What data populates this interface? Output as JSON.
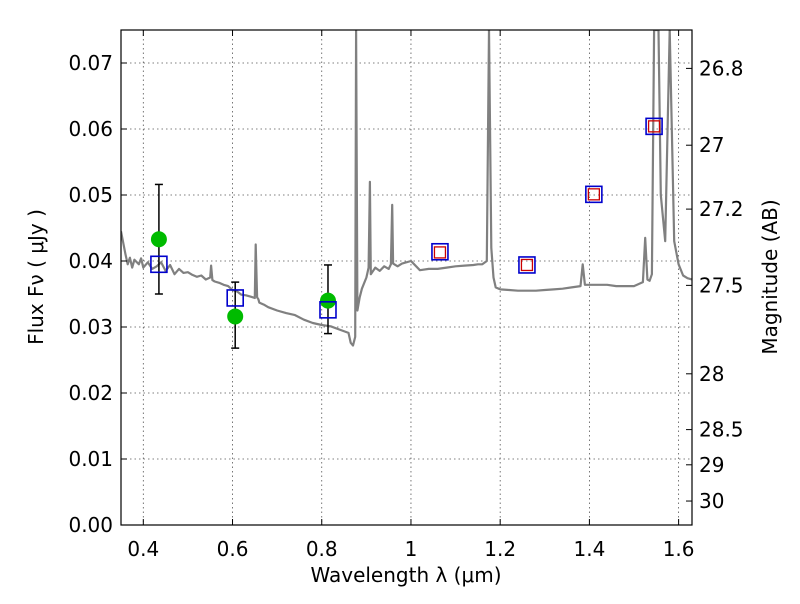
{
  "chart_data": {
    "type": "scatter",
    "xlabel": "Wavelength  λ (μm)",
    "ylabel": "Flux  Fν  ( μJy )",
    "y2label": "Magnitude (AB)",
    "xlim": [
      0.35,
      1.63
    ],
    "ylim": [
      0.0,
      0.075
    ],
    "grid": true,
    "x_ticks": [
      0.4,
      0.6,
      0.8,
      1.0,
      1.2,
      1.4,
      1.6
    ],
    "x_tick_labels": [
      "0.4",
      "0.6",
      "0.8",
      "1",
      "1.2",
      "1.4",
      "1.6"
    ],
    "y_ticks": [
      0.0,
      0.01,
      0.02,
      0.03,
      0.04,
      0.05,
      0.06,
      0.07
    ],
    "y_tick_labels": [
      "0.00",
      "0.01",
      "0.02",
      "0.03",
      "0.04",
      "0.05",
      "0.06",
      "0.07"
    ],
    "mag_ticks": [
      26.8,
      27.0,
      27.2,
      27.5,
      28.0,
      28.5,
      29.0,
      30.0
    ],
    "mag_tick_labels": [
      "26.8",
      "27",
      "27.2",
      "27.5",
      "28",
      "28.5",
      "29",
      "30"
    ],
    "colors": {
      "model": "#808080",
      "observed": "#00bb00",
      "model_phot": "#0000cc",
      "synthetic": "#cc0000",
      "errorbar": "#000000",
      "grid": "#555555"
    },
    "observed_points": {
      "x": [
        0.435,
        0.606,
        0.814
      ],
      "y": [
        0.0433,
        0.0316,
        0.034
      ],
      "err_low": [
        0.035,
        0.0268,
        0.029
      ],
      "err_high": [
        0.0516,
        0.0368,
        0.0394
      ]
    },
    "model_photometry": {
      "x": [
        0.435,
        0.606,
        0.814,
        1.065,
        1.26,
        1.41,
        1.545
      ],
      "y": [
        0.0395,
        0.0344,
        0.0326,
        0.0414,
        0.0394,
        0.0501,
        0.0604
      ]
    },
    "synthetic_photometry": {
      "x": [
        1.065,
        1.26,
        1.41,
        1.545
      ],
      "y": [
        0.0413,
        0.0394,
        0.0501,
        0.0604
      ]
    },
    "model_spectrum": {
      "x": [
        0.35,
        0.36,
        0.365,
        0.37,
        0.375,
        0.38,
        0.39,
        0.395,
        0.4,
        0.41,
        0.42,
        0.43,
        0.44,
        0.45,
        0.46,
        0.47,
        0.48,
        0.49,
        0.5,
        0.51,
        0.52,
        0.53,
        0.54,
        0.55,
        0.552,
        0.555,
        0.56,
        0.57,
        0.58,
        0.59,
        0.6,
        0.61,
        0.62,
        0.63,
        0.64,
        0.65,
        0.652,
        0.655,
        0.658,
        0.66,
        0.67,
        0.68,
        0.7,
        0.72,
        0.74,
        0.76,
        0.78,
        0.8,
        0.82,
        0.84,
        0.86,
        0.865,
        0.87,
        0.875,
        0.877,
        0.88,
        0.885,
        0.89,
        0.9,
        0.905,
        0.908,
        0.91,
        0.92,
        0.93,
        0.94,
        0.95,
        0.955,
        0.958,
        0.96,
        0.97,
        0.98,
        1.0,
        1.02,
        1.04,
        1.06,
        1.08,
        1.1,
        1.12,
        1.14,
        1.15,
        1.16,
        1.17,
        1.175,
        1.18,
        1.185,
        1.19,
        1.2,
        1.22,
        1.24,
        1.26,
        1.28,
        1.3,
        1.32,
        1.34,
        1.36,
        1.38,
        1.385,
        1.39,
        1.4,
        1.42,
        1.44,
        1.46,
        1.48,
        1.5,
        1.52,
        1.525,
        1.53,
        1.535,
        1.54,
        1.545,
        1.55,
        1.555,
        1.56,
        1.57,
        1.58,
        1.59,
        1.6,
        1.61,
        1.62,
        1.63
      ],
      "y": [
        0.0445,
        0.041,
        0.0395,
        0.0405,
        0.039,
        0.0402,
        0.0395,
        0.0404,
        0.039,
        0.0398,
        0.0388,
        0.0392,
        0.0398,
        0.0385,
        0.0394,
        0.038,
        0.0388,
        0.0382,
        0.0383,
        0.0379,
        0.0376,
        0.0378,
        0.0372,
        0.0375,
        0.0393,
        0.0371,
        0.0369,
        0.0367,
        0.0364,
        0.0362,
        0.0356,
        0.0354,
        0.0349,
        0.0348,
        0.0346,
        0.0344,
        0.0425,
        0.0345,
        0.0342,
        0.0337,
        0.0334,
        0.033,
        0.0325,
        0.0321,
        0.0318,
        0.0311,
        0.0306,
        0.0303,
        0.0301,
        0.0296,
        0.0291,
        0.0276,
        0.0272,
        0.0285,
        0.075,
        0.0325,
        0.0345,
        0.0358,
        0.0375,
        0.039,
        0.052,
        0.038,
        0.039,
        0.0385,
        0.0392,
        0.0388,
        0.0395,
        0.0485,
        0.0396,
        0.0392,
        0.0396,
        0.04,
        0.0386,
        0.0388,
        0.0388,
        0.039,
        0.0392,
        0.0393,
        0.0394,
        0.0395,
        0.0395,
        0.04,
        0.075,
        0.042,
        0.0375,
        0.036,
        0.0357,
        0.0356,
        0.0355,
        0.0355,
        0.0355,
        0.0356,
        0.0357,
        0.0358,
        0.036,
        0.0362,
        0.0395,
        0.0364,
        0.0364,
        0.0364,
        0.0364,
        0.0362,
        0.0362,
        0.0362,
        0.0368,
        0.0435,
        0.0372,
        0.037,
        0.038,
        0.075,
        0.075,
        0.075,
        0.05,
        0.043,
        0.075,
        0.043,
        0.0395,
        0.0378,
        0.0374,
        0.0372
      ]
    }
  }
}
